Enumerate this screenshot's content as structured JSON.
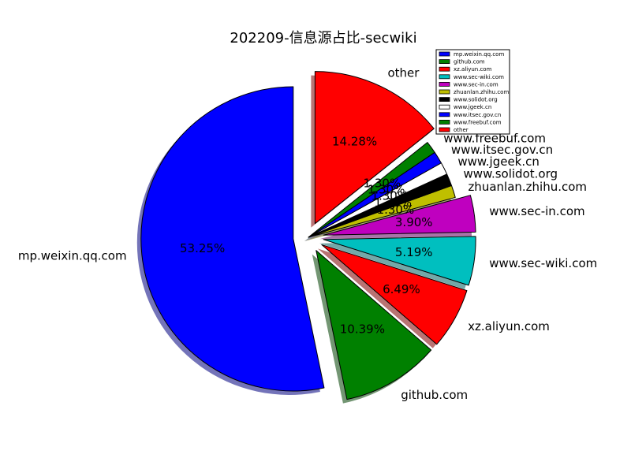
{
  "chart_data": {
    "type": "pie",
    "title": "202209-信息源占比-secwiki",
    "categories": [
      "mp.weixin.qq.com",
      "github.com",
      "xz.aliyun.com",
      "www.sec-wiki.com",
      "www.sec-in.com",
      "zhuanlan.zhihu.com",
      "www.solidot.org",
      "www.jgeek.cn",
      "www.itsec.gov.cn",
      "www.freebuf.com",
      "other"
    ],
    "values": [
      53.25,
      10.39,
      6.49,
      5.19,
      3.9,
      1.3,
      1.3,
      1.3,
      1.3,
      1.3,
      14.28
    ],
    "pct_labels": [
      "53.25%",
      "10.39%",
      "6.49%",
      "5.19%",
      "3.90%",
      "1.30%",
      "1.30%",
      "1.30%",
      "1.30%",
      "1.30%",
      "14.28%"
    ],
    "colors": [
      "#0000ff",
      "#008000",
      "#ff0000",
      "#00bfbf",
      "#bf00bf",
      "#bfbf00",
      "#000000",
      "#ffffff",
      "#0000ff",
      "#008000",
      "#ff0000"
    ],
    "exploded": [
      "mp.weixin.qq.com",
      "github.com",
      "xz.aliyun.com",
      "www.sec-wiki.com",
      "www.sec-in.com",
      "other"
    ],
    "shadow": true,
    "legend_position": "top-right",
    "start_angle_deg": 90,
    "direction": "counterclockwise"
  }
}
